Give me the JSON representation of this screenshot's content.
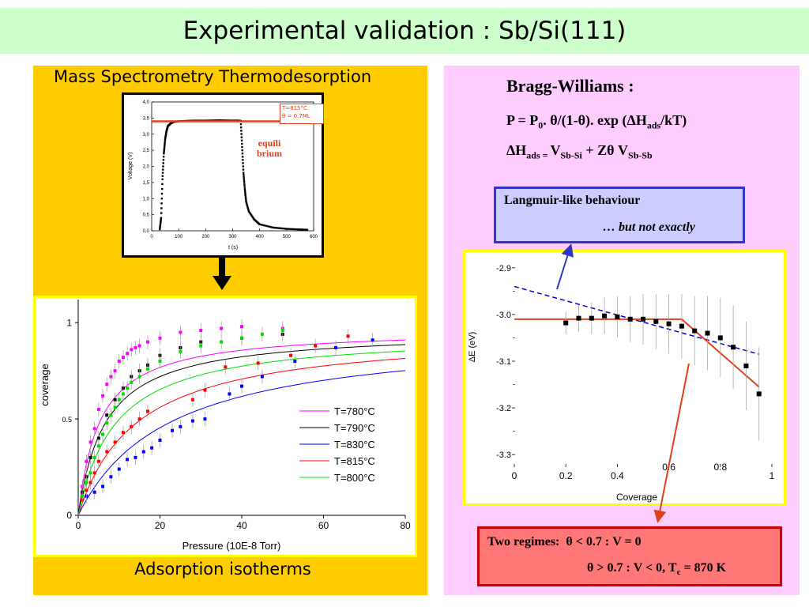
{
  "slide": {
    "title": "Experimental validation : Sb/Si(111)",
    "colors": {
      "title_bg": "#ccffcc",
      "left_bg": "#ffcc00",
      "right_bg": "#ffccff",
      "inset_border": "#ffff00",
      "box_blue": "#3333cc",
      "box_red": "#ff6666"
    }
  },
  "left": {
    "heading": "Mass Spectrometry Thermodesorption",
    "caption": "Adsorption isotherms",
    "arrow_icon": "down-arrow-icon"
  },
  "tds_chart": {
    "annot_line1": "T=815°C",
    "annot_line2": "θ = 0.7ML",
    "eq_line1": "equili",
    "eq_line2": "brium"
  },
  "bw": {
    "heading": "Bragg-Williams :",
    "eq1": {
      "a": "P = P",
      "a_sub": "0",
      "b": ". θ/(1-θ). exp (ΔH",
      "b_sub": "ads",
      "c": "/kT)"
    },
    "eq2": {
      "a": "ΔH",
      "a_sub": "ads",
      "b": " = ",
      "c": "V",
      "c_sub": "Sb-Si",
      "d": " + Zθ V",
      "d_sub": "Sb-Sb"
    }
  },
  "langmuir": {
    "line1": "Langmuir-like behaviour",
    "line2": "… but not exactly"
  },
  "regimes": {
    "label": "Two regimes:",
    "r1": "θ < 0.7 : V = 0",
    "r2a": "θ > 0.7 : V < 0, T",
    "r2_sub": "c",
    "r2b": " = 870 K"
  },
  "chart_data": [
    {
      "type": "scatter",
      "title": "",
      "xlabel": "t (s)",
      "ylabel": "Voltage (V)",
      "xlim": [
        0,
        600
      ],
      "ylim": [
        0,
        4.0
      ],
      "xticks": [
        "0",
        "100",
        "200",
        "300",
        "400",
        "500",
        "600"
      ],
      "yticks": [
        "0,0",
        "0,5",
        "1,0",
        "1,5",
        "2,0",
        "2,5",
        "3,0",
        "3,5",
        "4,0"
      ],
      "series": [
        {
          "x": [
            30,
            35,
            40,
            45,
            50,
            55,
            60,
            70,
            80,
            100,
            150,
            200,
            250,
            300,
            320,
            330,
            335,
            340,
            345,
            350,
            360,
            380,
            400,
            450,
            500,
            550,
            580
          ],
          "y": [
            0.05,
            0.4,
            1.6,
            2.4,
            2.85,
            3.1,
            3.25,
            3.33,
            3.38,
            3.4,
            3.42,
            3.42,
            3.43,
            3.42,
            3.42,
            3.41,
            2.6,
            1.8,
            1.3,
            0.9,
            0.6,
            0.35,
            0.2,
            0.1,
            0.06,
            0.04,
            0.03
          ]
        }
      ],
      "equilibrium_level": 3.4
    },
    {
      "type": "scatter",
      "title": "",
      "xlabel": "Pressure (10E-8 Torr)",
      "ylabel": "coverage",
      "xlim": [
        0,
        80
      ],
      "ylim": [
        0,
        1.12
      ],
      "xticks": [
        "0",
        "20",
        "40",
        "60",
        "80"
      ],
      "yticks": [
        "0",
        "0.5",
        "1"
      ],
      "series": [
        {
          "name": "T=780°C",
          "color": "#ff00ff",
          "K": 0.19,
          "sat": 0.97,
          "x": [
            1,
            2,
            3,
            4,
            5,
            6,
            7,
            8,
            9,
            10,
            11,
            12,
            13,
            14,
            15,
            17,
            20,
            25,
            30,
            35,
            40,
            50
          ],
          "y": [
            0.15,
            0.28,
            0.38,
            0.45,
            0.55,
            0.62,
            0.68,
            0.72,
            0.75,
            0.8,
            0.82,
            0.84,
            0.86,
            0.87,
            0.88,
            0.9,
            0.92,
            0.95,
            0.96,
            0.97,
            0.98,
            0.97
          ]
        },
        {
          "name": "T=790°C",
          "color": "#000000",
          "K": 0.15,
          "sat": 0.96,
          "x": [
            1,
            2,
            3,
            5,
            7,
            9,
            11,
            13,
            15,
            17,
            20,
            25,
            30,
            40,
            50
          ],
          "y": [
            0.12,
            0.2,
            0.3,
            0.4,
            0.52,
            0.6,
            0.66,
            0.72,
            0.75,
            0.78,
            0.83,
            0.87,
            0.9,
            0.92,
            0.94
          ]
        },
        {
          "name": "T=830°C",
          "color": "#0000ff",
          "K": 0.045,
          "sat": 0.96,
          "x": [
            2,
            4,
            6,
            8,
            10,
            12,
            14,
            16,
            18,
            20,
            23,
            25,
            28,
            31,
            37,
            40,
            45,
            53,
            63,
            72
          ],
          "y": [
            0.1,
            0.12,
            0.15,
            0.2,
            0.24,
            0.29,
            0.3,
            0.33,
            0.35,
            0.39,
            0.44,
            0.46,
            0.49,
            0.5,
            0.63,
            0.67,
            0.72,
            0.8,
            0.87,
            0.91
          ]
        },
        {
          "name": "T=815°C",
          "color": "#ff0000",
          "K": 0.07,
          "sat": 0.96,
          "x": [
            1,
            2,
            3,
            4,
            5,
            7,
            9,
            11,
            13,
            15,
            17,
            28,
            31,
            36,
            44,
            52,
            58,
            66
          ],
          "y": [
            0.08,
            0.13,
            0.17,
            0.22,
            0.28,
            0.33,
            0.38,
            0.43,
            0.46,
            0.5,
            0.54,
            0.6,
            0.65,
            0.77,
            0.79,
            0.83,
            0.88,
            0.93
          ]
        },
        {
          "name": "T=800°C",
          "color": "#00dd00",
          "K": 0.11,
          "sat": 0.95,
          "x": [
            1,
            2,
            3,
            4,
            5,
            6,
            7,
            8,
            9,
            10,
            11,
            12,
            13,
            15,
            17,
            20,
            25,
            30,
            35,
            40,
            45,
            50
          ],
          "y": [
            0.1,
            0.17,
            0.22,
            0.3,
            0.36,
            0.42,
            0.48,
            0.52,
            0.56,
            0.6,
            0.63,
            0.66,
            0.69,
            0.72,
            0.76,
            0.8,
            0.85,
            0.88,
            0.9,
            0.92,
            0.94,
            0.96
          ]
        }
      ],
      "legend": "center-right"
    },
    {
      "type": "scatter",
      "title": "",
      "xlabel": "Coverage",
      "ylabel": "ΔE (eV)",
      "xlim": [
        0,
        1.0
      ],
      "ylim": [
        -3.32,
        -2.88
      ],
      "xticks": [
        "0",
        "0.2",
        "0.4",
        "0.6",
        "0.8",
        "1"
      ],
      "yticks": [
        "-2.9",
        "-3.0",
        "-3.1",
        "-3.2",
        "-3.3"
      ],
      "series": [
        {
          "name": "data",
          "x": [
            0.2,
            0.25,
            0.3,
            0.35,
            0.4,
            0.45,
            0.5,
            0.55,
            0.6,
            0.65,
            0.7,
            0.75,
            0.8,
            0.85,
            0.9,
            0.95
          ],
          "y": [
            -3.018,
            -3.008,
            -3.008,
            -3.003,
            -3.005,
            -3.01,
            -3.01,
            -3.015,
            -3.02,
            -3.025,
            -3.035,
            -3.04,
            -3.05,
            -3.07,
            -3.11,
            -3.17
          ]
        }
      ],
      "fit_red": {
        "x": [
          0,
          0.65,
          0.95
        ],
        "y": [
          -3.01,
          -3.01,
          -3.155
        ]
      },
      "fit_blue": {
        "x": [
          0,
          0.95
        ],
        "y": [
          -2.94,
          -3.085
        ]
      }
    }
  ]
}
